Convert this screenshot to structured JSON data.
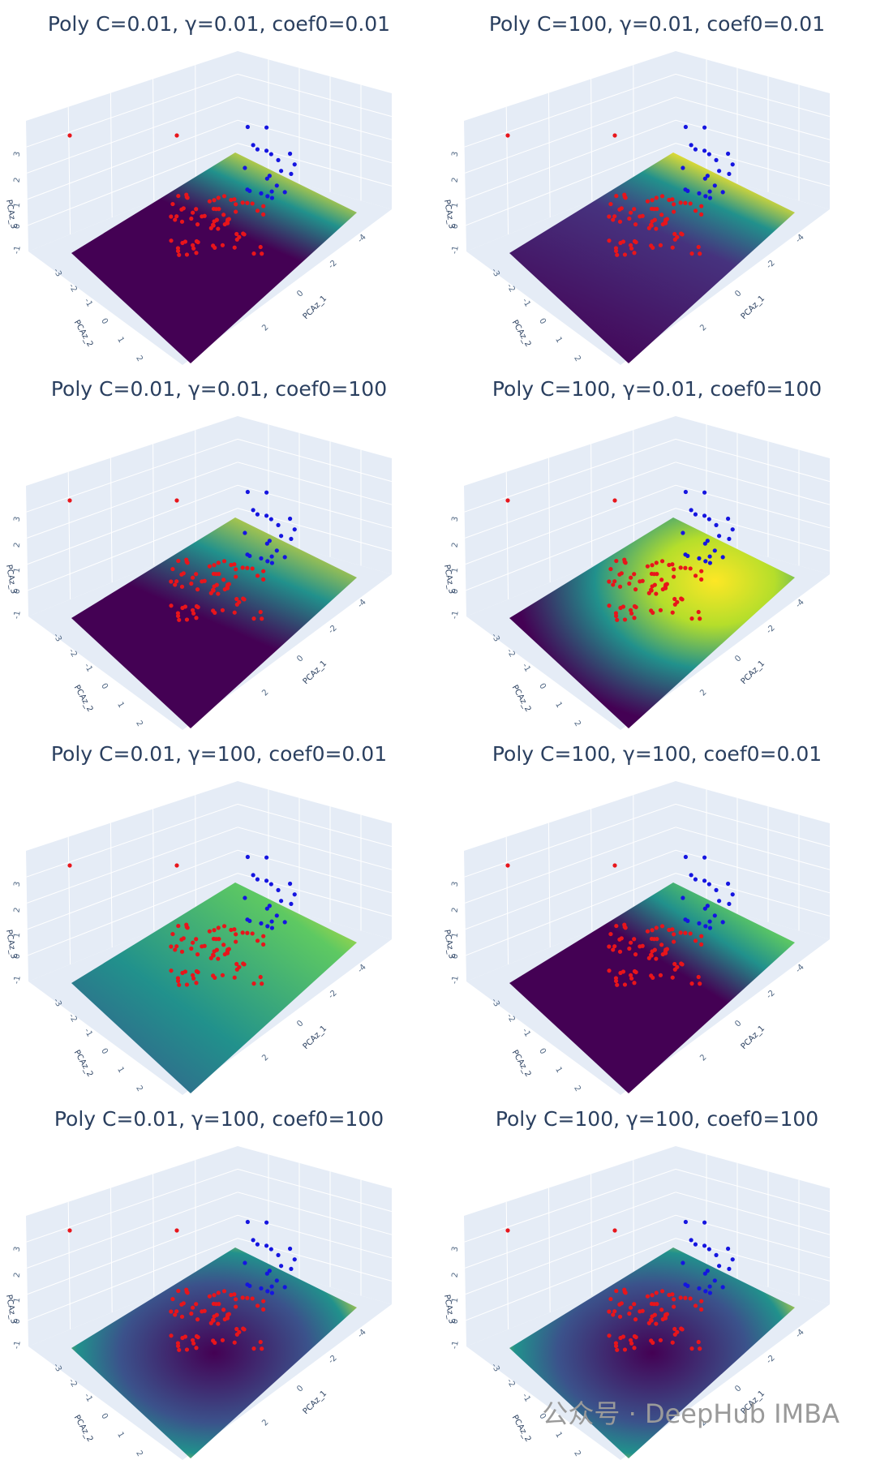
{
  "panels": [
    {
      "title": "Poly C=0.01, γ=0.01, coef0=0.01"
    },
    {
      "title": "Poly C=100, γ=0.01, coef0=0.01"
    },
    {
      "title": "Poly C=0.01, γ=0.01, coef0=100"
    },
    {
      "title": "Poly C=100, γ=0.01, coef0=100"
    },
    {
      "title": "Poly C=0.01, γ=100, coef0=0.01"
    },
    {
      "title": "Poly C=100, γ=100, coef0=0.01"
    },
    {
      "title": "Poly C=0.01, γ=100, coef0=100"
    },
    {
      "title": "Poly C=100, γ=100, coef0=100"
    }
  ],
  "axes": {
    "x": {
      "title": "PCAz_1",
      "ticks": [
        -4,
        -2,
        0,
        2
      ]
    },
    "y": {
      "title": "PCAz_2",
      "ticks": [
        -3,
        -2,
        -1,
        0,
        1,
        2
      ]
    },
    "z": {
      "title": "PCAz_3",
      "ticks": [
        -1,
        0,
        1,
        2,
        3
      ]
    }
  },
  "watermark": "公众号 · DeepHub IMBA"
}
